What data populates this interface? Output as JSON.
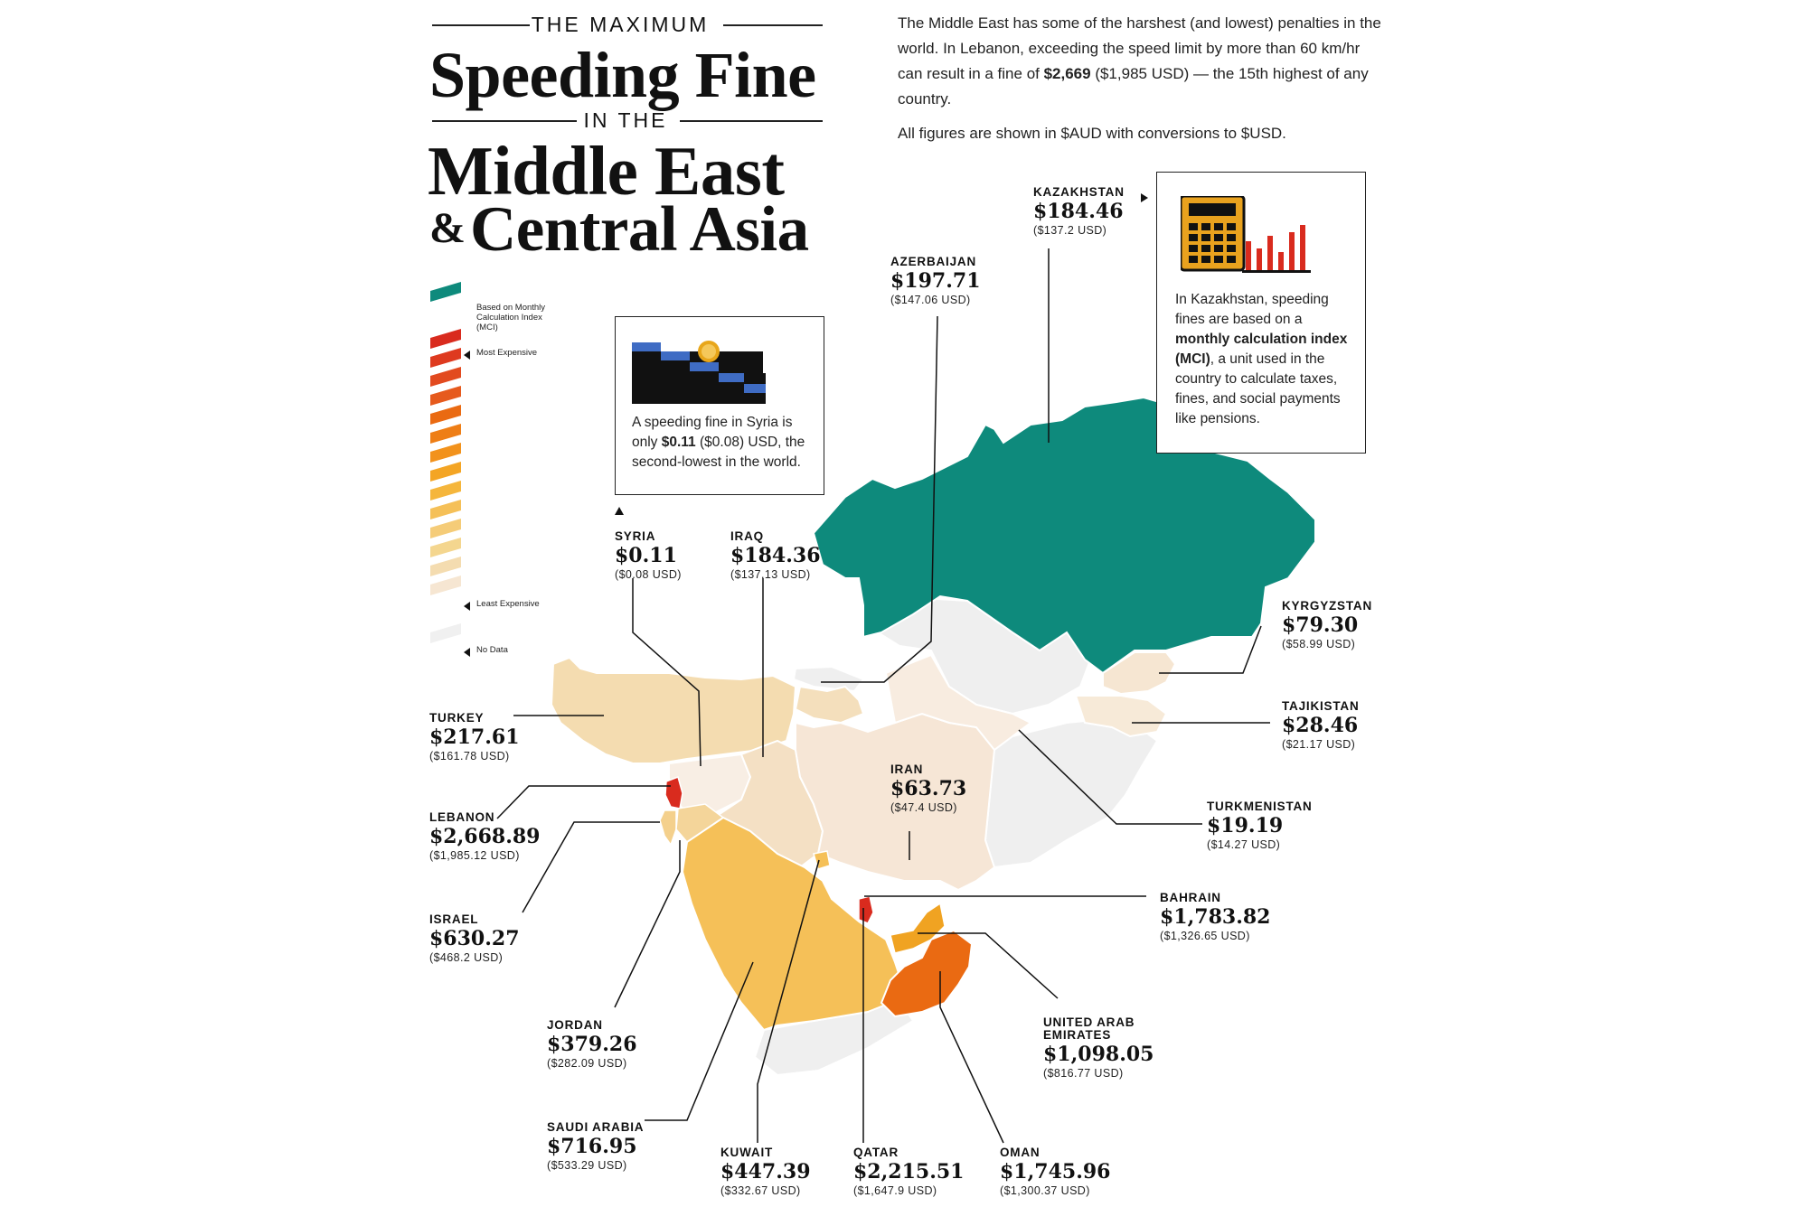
{
  "title": {
    "kicker_top": "THE MAXIMUM",
    "line1": "Speeding Fine",
    "kicker_mid": "IN THE",
    "line2": "Middle East",
    "amp": "&",
    "line3": "Central Asia"
  },
  "intro": {
    "p1_a": "The Middle East has some of the harshest (and lowest) penalties in the world. In Lebanon, exceeding the speed limit by more than 60 km/hr can result in a fine of ",
    "p1_bold": "$2,669",
    "p1_b": " ($1,985 USD) — the 15th highest of any country.",
    "p2": "All figures are shown in $AUD with conversions to $USD."
  },
  "legend": {
    "mci": "Based on Monthly Calculation Index (MCI)",
    "most": "Most Expensive",
    "least": "Least Expensive",
    "nodata": "No Data"
  },
  "syria_box": {
    "a": "A speeding fine in Syria is only ",
    "bold": "$0.11",
    "b": " ($0.08) USD, the second-lowest in the world."
  },
  "kaz_box": {
    "a": "In Kazakhstan, speeding fines are based on a ",
    "bold": "monthly calculation index (MCI)",
    "b": ", a unit used in the country to calculate taxes, fines, and social payments like pensions."
  },
  "countries": [
    {
      "key": "kazakhstan",
      "name": "KAZAKHSTAN",
      "aud": "$184.46",
      "usd": "($137.2 USD)"
    },
    {
      "key": "azerbaijan",
      "name": "AZERBAIJAN",
      "aud": "$197.71",
      "usd": "($147.06 USD)"
    },
    {
      "key": "syria",
      "name": "SYRIA",
      "aud": "$0.11",
      "usd": "($0.08 USD)"
    },
    {
      "key": "iraq",
      "name": "IRAQ",
      "aud": "$184.36",
      "usd": "($137.13 USD)"
    },
    {
      "key": "kyrgyzstan",
      "name": "KYRGYZSTAN",
      "aud": "$79.30",
      "usd": "($58.99 USD)"
    },
    {
      "key": "tajikistan",
      "name": "TAJIKISTAN",
      "aud": "$28.46",
      "usd": "($21.17 USD)"
    },
    {
      "key": "turkey",
      "name": "TURKEY",
      "aud": "$217.61",
      "usd": "($161.78 USD)"
    },
    {
      "key": "iran",
      "name": "IRAN",
      "aud": "$63.73",
      "usd": "($47.4 USD)"
    },
    {
      "key": "turkmenistan",
      "name": "TURKMENISTAN",
      "aud": "$19.19",
      "usd": "($14.27 USD)"
    },
    {
      "key": "lebanon",
      "name": "LEBANON",
      "aud": "$2,668.89",
      "usd": "($1,985.12 USD)"
    },
    {
      "key": "israel",
      "name": "ISRAEL",
      "aud": "$630.27",
      "usd": "($468.2 USD)"
    },
    {
      "key": "bahrain",
      "name": "BAHRAIN",
      "aud": "$1,783.82",
      "usd": "($1,326.65 USD)"
    },
    {
      "key": "jordan",
      "name": "JORDAN",
      "aud": "$379.26",
      "usd": "($282.09 USD)"
    },
    {
      "key": "uae",
      "name": "UNITED ARAB EMIRATES",
      "aud": "$1,098.05",
      "usd": "($816.77 USD)"
    },
    {
      "key": "saudi",
      "name": "SAUDI ARABIA",
      "aud": "$716.95",
      "usd": "($533.29 USD)"
    },
    {
      "key": "kuwait",
      "name": "KUWAIT",
      "aud": "$447.39",
      "usd": "($332.67 USD)"
    },
    {
      "key": "qatar",
      "name": "QATAR",
      "aud": "$2,215.51",
      "usd": "($1,647.9 USD)"
    },
    {
      "key": "oman",
      "name": "OMAN",
      "aud": "$1,745.96",
      "usd": "($1,300.37 USD)"
    }
  ],
  "colors": {
    "mci": "#0e8a7c",
    "nodata": "#f0f0f0",
    "lebanon": "#d92b1e",
    "qatar": "#d92b1e",
    "bahrain": "#e23a21",
    "oman": "#ea6a12",
    "uae": "#f0a322",
    "saudi": "#f5c058",
    "kuwait": "#f5c058",
    "israel": "#f4d08c",
    "jordan": "#f4d59a",
    "turkey": "#f4dcb0",
    "azerbaijan": "#f4dfbc",
    "iraq": "#f4e0c4",
    "kyrgyzstan": "#f6e6d2",
    "iran": "#f6e6d6",
    "tajikistan": "#f7ead8",
    "turkmenistan": "#f8ece0",
    "syria": "#f8eee4"
  }
}
